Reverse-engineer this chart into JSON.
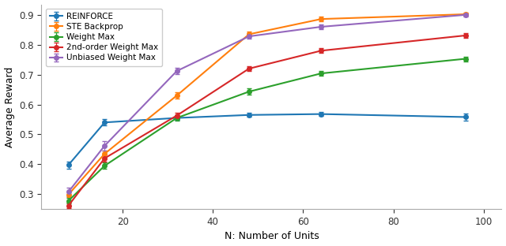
{
  "x": [
    8,
    16,
    32,
    48,
    64,
    96
  ],
  "series": {
    "REINFORCE": {
      "y": [
        0.398,
        0.54,
        0.555,
        0.565,
        0.568,
        0.558
      ],
      "yerr": [
        0.012,
        0.01,
        0.007,
        0.007,
        0.007,
        0.012
      ],
      "color": "#1f77b4",
      "marker": "o"
    },
    "STE Backprop": {
      "y": [
        0.299,
        0.435,
        0.63,
        0.835,
        0.886,
        0.902
      ],
      "yerr": [
        0.01,
        0.01,
        0.01,
        0.008,
        0.007,
        0.005
      ],
      "color": "#ff7f0e",
      "marker": "o"
    },
    "Weight Max": {
      "y": [
        0.278,
        0.395,
        0.555,
        0.643,
        0.704,
        0.753
      ],
      "yerr": [
        0.01,
        0.01,
        0.01,
        0.01,
        0.008,
        0.008
      ],
      "color": "#2ca02c",
      "marker": "o"
    },
    "2nd-order Weight Max": {
      "y": [
        0.262,
        0.42,
        0.563,
        0.72,
        0.78,
        0.831
      ],
      "yerr": [
        0.01,
        0.012,
        0.01,
        0.008,
        0.008,
        0.007
      ],
      "color": "#d62728",
      "marker": "o"
    },
    "Unbiased Weight Max": {
      "y": [
        0.308,
        0.462,
        0.712,
        0.828,
        0.86,
        0.9
      ],
      "yerr": [
        0.015,
        0.015,
        0.01,
        0.008,
        0.007,
        0.005
      ],
      "color": "#9467bd",
      "marker": "o"
    }
  },
  "xlabel": "N: Number of Units",
  "ylabel": "Average Reward",
  "xlim": [
    2,
    104
  ],
  "ylim": [
    0.25,
    0.935
  ],
  "yticks": [
    0.3,
    0.4,
    0.5,
    0.6,
    0.7,
    0.8,
    0.9
  ],
  "xticks": [
    20,
    40,
    60,
    80,
    100
  ],
  "legend_order": [
    "REINFORCE",
    "STE Backprop",
    "Weight Max",
    "2nd-order Weight Max",
    "Unbiased Weight Max"
  ],
  "figsize": [
    6.4,
    3.12
  ],
  "dpi": 100
}
